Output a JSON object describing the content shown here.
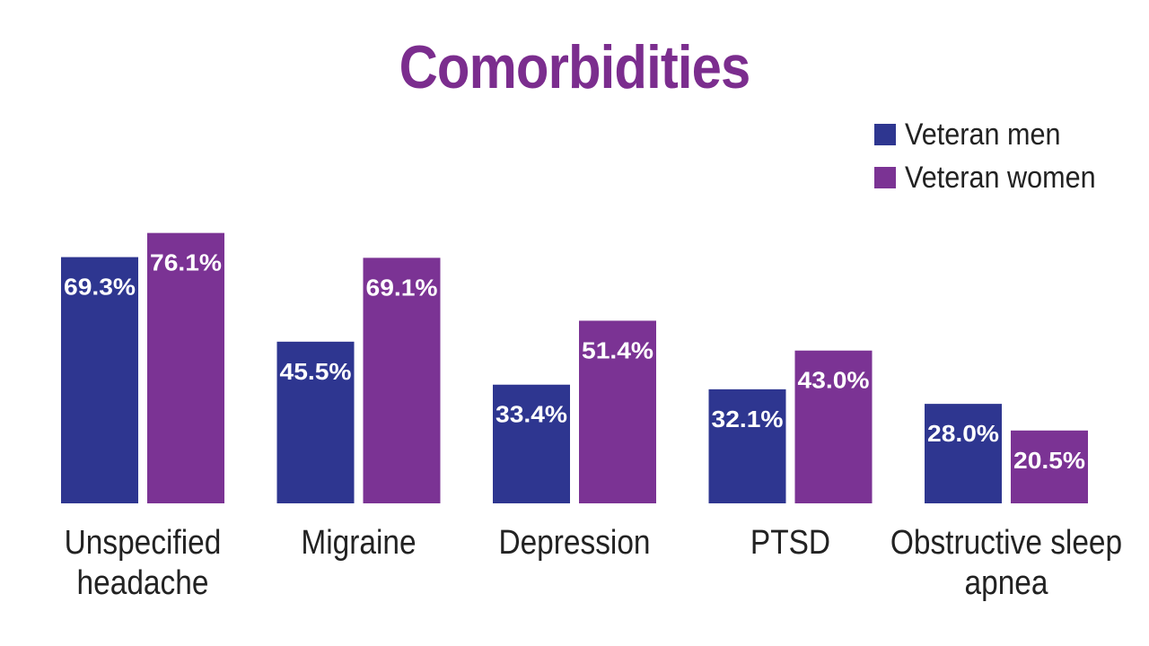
{
  "chart_data": {
    "type": "bar",
    "title": "Comorbidities",
    "categories": [
      [
        "Unspecified",
        "headache"
      ],
      [
        "Migraine"
      ],
      [
        "Depression"
      ],
      [
        "PTSD"
      ],
      [
        "Obstructive sleep",
        "apnea"
      ]
    ],
    "series": [
      {
        "name": "Veteran men",
        "color": "#2e3690",
        "values": [
          69.3,
          45.5,
          33.4,
          32.1,
          28.0
        ],
        "labels": [
          "69.3%",
          "45.5%",
          "33.4%",
          "32.1%",
          "28.0%"
        ]
      },
      {
        "name": "Veteran women",
        "color": "#7b3394",
        "values": [
          76.1,
          69.1,
          51.4,
          43.0,
          20.5
        ],
        "labels": [
          "76.1%",
          "69.1%",
          "51.4%",
          "43.0%",
          "20.5%"
        ]
      }
    ],
    "xlabel": "",
    "ylabel": "",
    "ylim": [
      0,
      100
    ],
    "grid": false,
    "legend": "top-right"
  }
}
